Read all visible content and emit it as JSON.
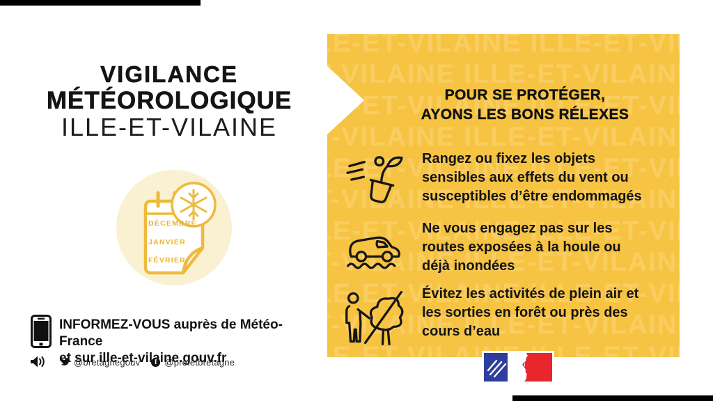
{
  "colors": {
    "panel_yellow": "#F6C342",
    "watermark_yellow": "#F9CD5F",
    "badge_cream": "#FAF0D2",
    "badge_yellow": "#EDBA3B",
    "flag_blue": "#2D3E9E",
    "flag_red": "#E8262D",
    "text_black": "#141414"
  },
  "left_column": {
    "title_line1": "VIGILANCE",
    "title_line2": "MÉTÉOROLOGIQUE",
    "title_line3": "ILLE-ET-VILAINE",
    "season_badge": {
      "icon": "snowflake-icon",
      "months": [
        "DÉCEMBRE",
        "JANVIER",
        "FÉVRIER"
      ]
    },
    "info": {
      "line1": "INFORMEZ-VOUS auprès de Météo-France",
      "line2": "et sur ille-et-vilaine.gouv.fr"
    },
    "social": {
      "twitter_handle": "@bretagnegouv",
      "facebook_handle": "@prefetbretagne"
    }
  },
  "advice_panel": {
    "watermark_word": "ILLE-ET-VILAINE",
    "header_line1": "POUR SE PROTÉGER,",
    "header_line2": "AYONS LES BONS RÉLEXES",
    "items": [
      {
        "icon": "flying-pot-icon",
        "text": "Rangez ou fixez les objets sensibles aux effets du vent ou susceptibles d’être endommagés"
      },
      {
        "icon": "flooded-road-car-icon",
        "text": "Ne vous engagez pas sur les routes exposées à la houle ou déjà inondées"
      },
      {
        "icon": "outdoor-activity-icon",
        "text": "Évitez les activités de plein air et les sorties en forêt ou près des cours d’eau"
      }
    ]
  }
}
